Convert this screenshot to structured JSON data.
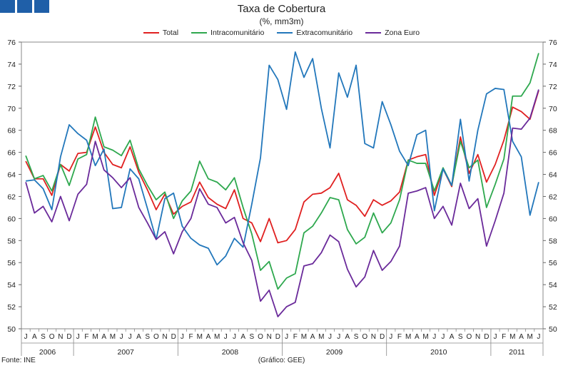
{
  "chart_data": {
    "type": "line",
    "title": "Taxa de Cobertura",
    "subtitle": "(%, mm3m)",
    "ylim": [
      50,
      76
    ],
    "yticks": [
      50,
      52,
      54,
      56,
      58,
      60,
      62,
      64,
      66,
      68,
      70,
      72,
      74,
      76
    ],
    "month_labels": [
      "J",
      "A",
      "S",
      "O",
      "N",
      "D",
      "J",
      "F",
      "M",
      "A",
      "M",
      "J",
      "J",
      "A",
      "S",
      "O",
      "N",
      "D",
      "J",
      "F",
      "M",
      "A",
      "M",
      "J",
      "J",
      "A",
      "S",
      "O",
      "N",
      "D",
      "J",
      "F",
      "M",
      "A",
      "M",
      "J",
      "J",
      "A",
      "S",
      "O",
      "N",
      "D",
      "J",
      "F",
      "M",
      "A",
      "M",
      "J",
      "J",
      "A",
      "S",
      "O",
      "N",
      "D",
      "J",
      "F",
      "M",
      "A",
      "M",
      "J"
    ],
    "years": [
      {
        "label": "2006",
        "start": 0,
        "count": 6
      },
      {
        "label": "2007",
        "start": 6,
        "count": 12
      },
      {
        "label": "2008",
        "start": 18,
        "count": 12
      },
      {
        "label": "2009",
        "start": 30,
        "count": 12
      },
      {
        "label": "2010",
        "start": 42,
        "count": 12
      },
      {
        "label": "2011",
        "start": 54,
        "count": 6
      }
    ],
    "series": [
      {
        "name": "Total",
        "color": "#e02020",
        "values": [
          65.2,
          63.6,
          63.6,
          62.1,
          64.9,
          64.3,
          65.9,
          66.0,
          68.3,
          66.0,
          64.9,
          64.6,
          66.5,
          64.2,
          62.6,
          60.8,
          62.2,
          60.4,
          61.1,
          61.5,
          63.3,
          61.9,
          61.3,
          60.9,
          62.6,
          60.0,
          59.6,
          57.9,
          60.0,
          57.8,
          58.0,
          59.0,
          61.5,
          62.2,
          62.3,
          62.8,
          64.1,
          61.7,
          61.2,
          60.2,
          61.7,
          61.2,
          61.6,
          62.4,
          65.3,
          65.6,
          65.8,
          62.1,
          64.5,
          62.9,
          67.4,
          64.1,
          65.8,
          63.3,
          64.9,
          67.1,
          70.1,
          69.7,
          69.0,
          71.6
        ]
      },
      {
        "name": "Intracomunitário",
        "color": "#2ea84e",
        "values": [
          65.7,
          63.6,
          63.9,
          62.5,
          64.9,
          63.0,
          65.4,
          65.8,
          69.2,
          66.5,
          66.2,
          65.7,
          67.1,
          64.5,
          63.0,
          61.7,
          62.4,
          60.0,
          61.6,
          62.5,
          65.2,
          63.6,
          63.3,
          62.6,
          63.7,
          61.0,
          58.6,
          55.3,
          56.1,
          53.6,
          54.6,
          55.0,
          58.7,
          59.3,
          60.5,
          61.9,
          61.7,
          59.0,
          57.7,
          58.3,
          60.5,
          58.7,
          59.6,
          61.7,
          65.3,
          65.0,
          65.0,
          62.5,
          64.6,
          63.0,
          67.0,
          64.6,
          65.3,
          61.0,
          63.1,
          65.4,
          71.1,
          71.1,
          72.3,
          75.0
        ]
      },
      {
        "name": "Extracomunitário",
        "color": "#2277bb",
        "values": [
          63.4,
          63.5,
          62.7,
          60.8,
          65.6,
          68.5,
          67.7,
          67.1,
          64.8,
          66.3,
          60.9,
          61.0,
          64.5,
          63.6,
          60.9,
          58.1,
          61.8,
          62.3,
          59.3,
          58.2,
          57.6,
          57.3,
          55.8,
          56.6,
          58.2,
          57.4,
          61.3,
          65.5,
          73.9,
          72.6,
          69.9,
          75.1,
          72.8,
          74.5,
          70.0,
          66.4,
          73.2,
          71.0,
          73.9,
          66.8,
          66.4,
          70.6,
          68.5,
          66.1,
          64.8,
          67.6,
          68.0,
          60.7,
          64.5,
          63.0,
          69.0,
          63.4,
          68.0,
          71.3,
          71.8,
          71.7,
          67.0,
          65.6,
          60.3,
          63.3
        ]
      },
      {
        "name": "Zona Euro",
        "color": "#6a2a9a",
        "values": [
          63.3,
          60.5,
          61.1,
          59.7,
          62.0,
          59.8,
          62.2,
          63.1,
          67.0,
          64.4,
          63.7,
          62.8,
          63.7,
          61.0,
          59.6,
          58.1,
          58.8,
          56.8,
          58.8,
          60.0,
          62.7,
          61.3,
          61.0,
          59.6,
          60.1,
          57.8,
          56.2,
          52.5,
          53.5,
          51.1,
          52.0,
          52.4,
          55.7,
          55.9,
          56.9,
          58.5,
          57.9,
          55.4,
          53.8,
          54.7,
          57.1,
          55.3,
          56.1,
          57.5,
          62.3,
          62.5,
          62.8,
          60.0,
          61.1,
          59.4,
          63.2,
          60.9,
          61.8,
          57.5,
          59.8,
          62.3,
          68.2,
          68.1,
          69.1,
          71.7
        ]
      }
    ]
  },
  "footer": {
    "source": "Fonte: INE",
    "credit": "(Gráfico: GEE)"
  }
}
